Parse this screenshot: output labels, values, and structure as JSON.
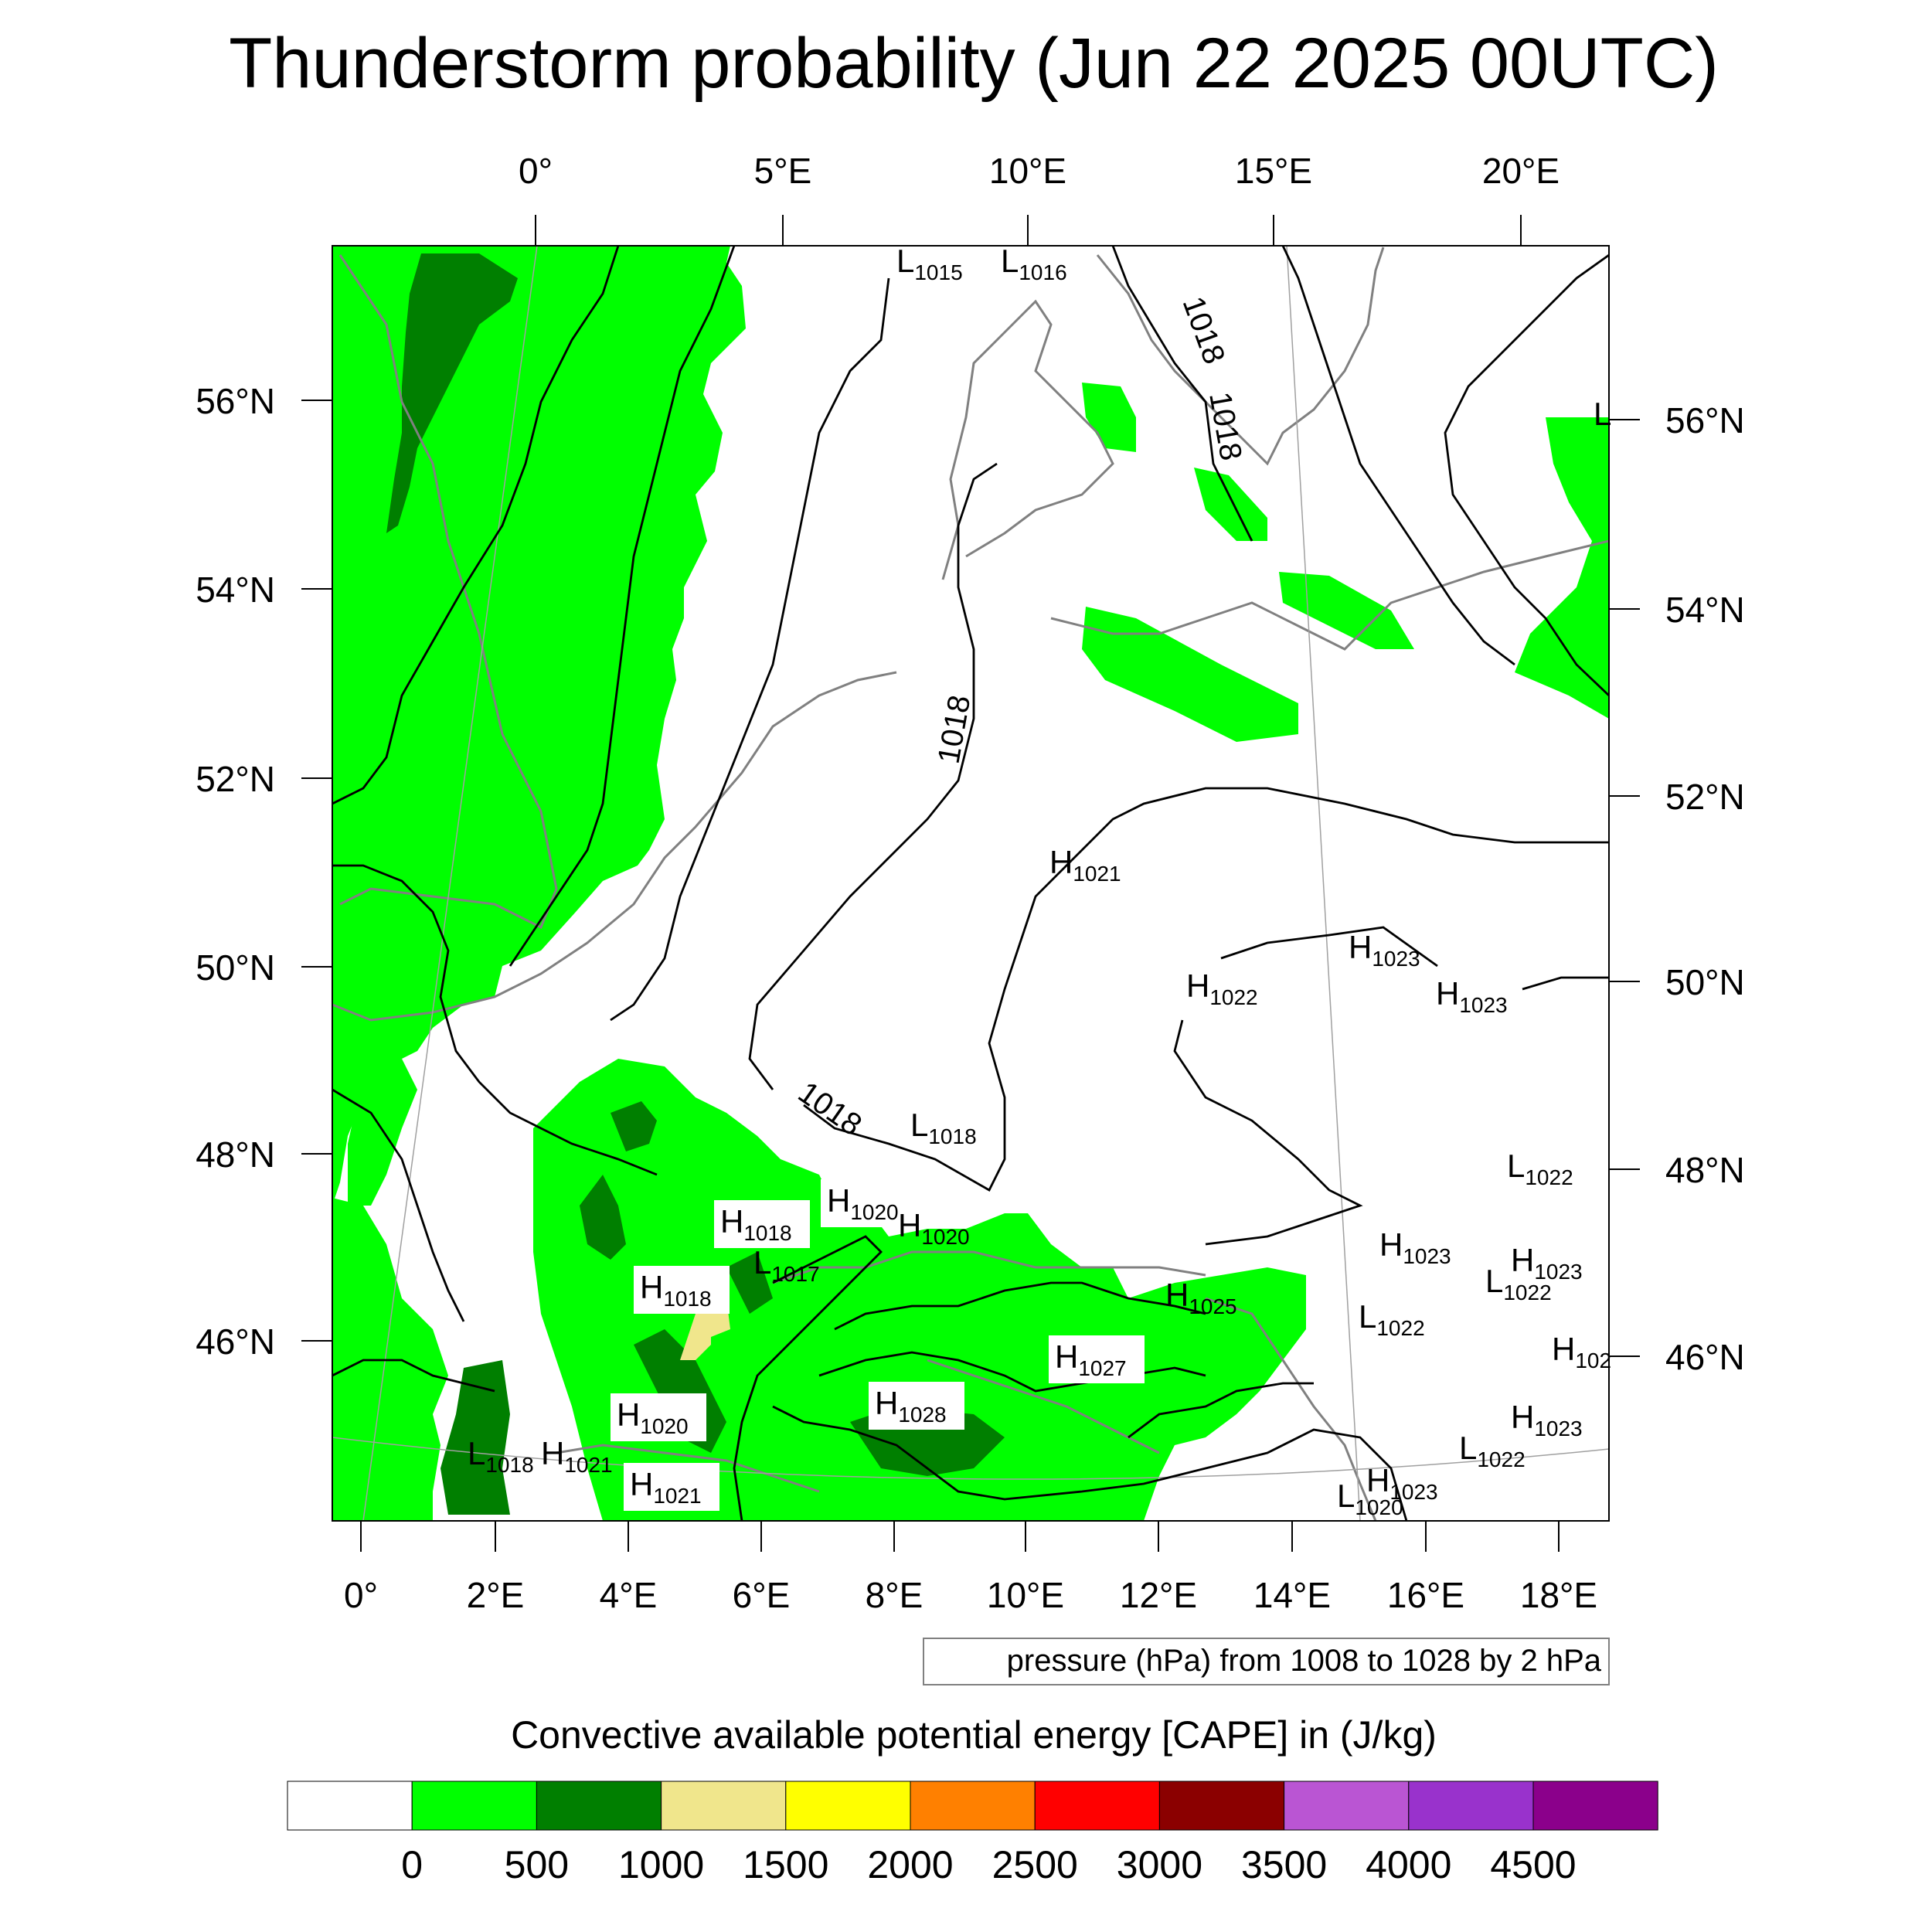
{
  "title": "Thunderstorm probability (Jun 22 2025 00UTC)",
  "top_lon_labels": [
    "0°",
    "5°E",
    "10°E",
    "15°E",
    "20°E"
  ],
  "bottom_lon_labels": [
    "0°",
    "2°E",
    "4°E",
    "6°E",
    "8°E",
    "10°E",
    "12°E",
    "14°E",
    "16°E",
    "18°E"
  ],
  "left_lat_labels": [
    "56°N",
    "54°N",
    "52°N",
    "50°N",
    "48°N",
    "46°N"
  ],
  "right_lat_labels": [
    "56°N",
    "54°N",
    "52°N",
    "50°N",
    "48°N",
    "46°N"
  ],
  "isobar_labels": [
    "1018",
    "1018",
    "1018",
    "1018",
    "1018"
  ],
  "pressure_centers": [
    {
      "kind": "L",
      "value": "1015"
    },
    {
      "kind": "L",
      "value": "1016"
    },
    {
      "kind": "H",
      "value": "1021"
    },
    {
      "kind": "H",
      "value": "1023"
    },
    {
      "kind": "H",
      "value": "1022"
    },
    {
      "kind": "H",
      "value": "1023"
    },
    {
      "kind": "L",
      "value": "1018"
    },
    {
      "kind": "L",
      "value": "1022"
    },
    {
      "kind": "H",
      "value": "1018"
    },
    {
      "kind": "H",
      "value": "1020"
    },
    {
      "kind": "H",
      "value": "1020"
    },
    {
      "kind": "L",
      "value": "1017"
    },
    {
      "kind": "H",
      "value": "1018"
    },
    {
      "kind": "H",
      "value": "1023"
    },
    {
      "kind": "H",
      "value": "1023"
    },
    {
      "kind": "L",
      "value": "1022"
    },
    {
      "kind": "H",
      "value": "1025"
    },
    {
      "kind": "L",
      "value": "1022"
    },
    {
      "kind": "H",
      "value": "102"
    },
    {
      "kind": "H",
      "value": "1027"
    },
    {
      "kind": "H",
      "value": "1028"
    },
    {
      "kind": "H",
      "value": "1020"
    },
    {
      "kind": "H",
      "value": "1023"
    },
    {
      "kind": "L",
      "value": "1022"
    },
    {
      "kind": "L",
      "value": "1018"
    },
    {
      "kind": "H",
      "value": "1021"
    },
    {
      "kind": "H",
      "value": "1021"
    },
    {
      "kind": "H",
      "value": "1023"
    },
    {
      "kind": "L",
      "value": "1020"
    },
    {
      "kind": "L",
      "value": ""
    }
  ],
  "contour_note": "pressure (hPa) from 1008 to 1028 by 2 hPa",
  "colorbar": {
    "title": "Convective available potential energy [CAPE] in (J/kg)",
    "colors": [
      "#ffffff",
      "#00ff00",
      "#007f00",
      "#f0e68c",
      "#ffff00",
      "#ff8000",
      "#ff0000",
      "#8b0000",
      "#ba55d3",
      "#9932cc",
      "#8b008b"
    ],
    "tick_labels": [
      "0",
      "500",
      "1000",
      "1500",
      "2000",
      "2500",
      "3000",
      "3500",
      "4000",
      "4500"
    ]
  },
  "map_colors": {
    "cape_0_500": "#00ff00",
    "cape_500_1000": "#007f00",
    "cape_1000_1500": "#f0e68c",
    "coastline": "#808080",
    "isobar": "#000000"
  }
}
